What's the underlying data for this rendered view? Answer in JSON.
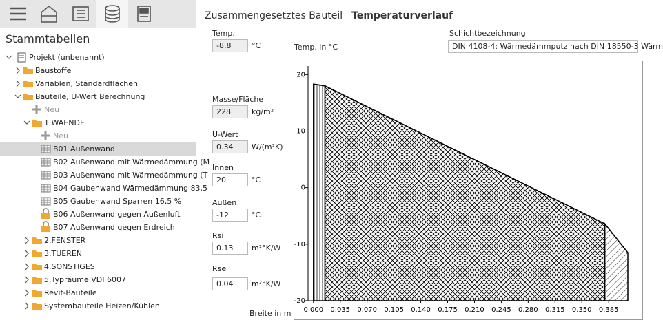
{
  "sidebar": {
    "title": "Stammtabellen",
    "tree": [
      "Projekt (unbenannt)",
      "Baustoffe",
      "Variablen, Standardflächen",
      "Bauteile, U-Wert Berechnung",
      "Neu",
      "1.WAENDE",
      "Neu",
      "B01 Außenwand",
      "B02 Außenwand mit Wärmedämmung (M",
      "B03 Außenwand mit Wärmedämmung (T",
      "B04 Gaubenwand Wärmedämmung 83,5",
      "B05 Gaubenwand Sparren 16,5 %",
      "B06 Außenwand gegen Außenluft",
      "B07 Außenwand gegen Erdreich",
      "2.FENSTER",
      "3.TUEREN",
      "4.SONSTIGES",
      "5.Typräume VDI 6007",
      "Revit-Bauteile",
      "Systembauteile Heizen/Kühlen"
    ]
  },
  "header": {
    "title": "Zusammengesetztes Bauteil",
    "subtitle": "Temperaturverlauf"
  },
  "form": [
    {
      "label": "Temp.",
      "value": -8.8,
      "unit": "°C"
    },
    {
      "label": "Masse/Fläche",
      "value": 228,
      "unit": "kg/m²"
    },
    {
      "label": "U-Wert",
      "value": 0.34,
      "unit": "W/(m²K)"
    },
    {
      "label": "Innen",
      "value": 20,
      "unit": "°C"
    },
    {
      "label": "Außen",
      "value": -12,
      "unit": "°C"
    },
    {
      "label": "Rsi",
      "value": 0.13,
      "unit": "m²°K/W"
    },
    {
      "label": "Rse",
      "value": 0.04,
      "unit": "m²°K/W"
    }
  ],
  "layer_name": {
    "label": "Schichtbezeichnung",
    "value": "DIN 4108-4: Wärmedämmputz nach DIN 18550-3 Wärm"
  },
  "chart_data": {
    "type": "line",
    "y_label": "Temp. in °C",
    "x_label": "Breite in m",
    "x": [
      0,
      0.015,
      0.38,
      0.41
    ],
    "values": [
      18.3,
      18.0,
      -6.4,
      -11.5
    ],
    "color": "#000000",
    "xlim": [
      -0.007,
      0.41
    ],
    "ylim": [
      -20,
      21.5
    ],
    "xticks": [
      {
        "value": 0,
        "label": "0.000"
      },
      {
        "value": 0.035,
        "label": "0.035"
      },
      {
        "value": 0.07,
        "label": "0.070"
      },
      {
        "value": 0.105,
        "label": "0.105"
      },
      {
        "value": 0.14,
        "label": "0.140"
      },
      {
        "value": 0.175,
        "label": "0.175"
      },
      {
        "value": 0.21,
        "label": "0.210"
      },
      {
        "value": 0.245,
        "label": "0.245"
      },
      {
        "value": 0.28,
        "label": "0.280"
      },
      {
        "value": 0.315,
        "label": "0.315"
      },
      {
        "value": 0.35,
        "label": "0.350"
      },
      {
        "value": 0.385,
        "label": "0.385"
      }
    ],
    "yticks": [
      -20,
      -10,
      0,
      10,
      20
    ]
  }
}
